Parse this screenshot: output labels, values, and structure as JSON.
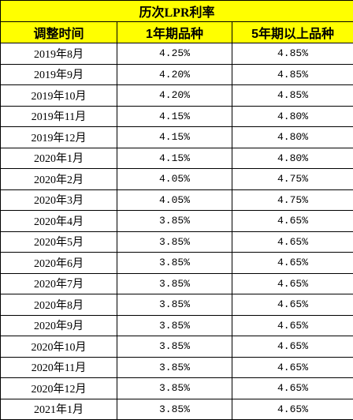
{
  "table": {
    "title": "历次LPR利率",
    "headers": [
      "调整时间",
      "1年期品种",
      "5年期以上品种"
    ],
    "rows": [
      [
        "2019年8月",
        "4.25%",
        "4.85%"
      ],
      [
        "2019年9月",
        "4.20%",
        "4.85%"
      ],
      [
        "2019年10月",
        "4.20%",
        "4.85%"
      ],
      [
        "2019年11月",
        "4.15%",
        "4.80%"
      ],
      [
        "2019年12月",
        "4.15%",
        "4.80%"
      ],
      [
        "2020年1月",
        "4.15%",
        "4.80%"
      ],
      [
        "2020年2月",
        "4.05%",
        "4.75%"
      ],
      [
        "2020年3月",
        "4.05%",
        "4.75%"
      ],
      [
        "2020年4月",
        "3.85%",
        "4.65%"
      ],
      [
        "2020年5月",
        "3.85%",
        "4.65%"
      ],
      [
        "2020年6月",
        "3.85%",
        "4.65%"
      ],
      [
        "2020年7月",
        "3.85%",
        "4.65%"
      ],
      [
        "2020年8月",
        "3.85%",
        "4.65%"
      ],
      [
        "2020年9月",
        "3.85%",
        "4.65%"
      ],
      [
        "2020年10月",
        "3.85%",
        "4.65%"
      ],
      [
        "2020年11月",
        "3.85%",
        "4.65%"
      ],
      [
        "2020年12月",
        "3.85%",
        "4.65%"
      ],
      [
        "2021年1月",
        "3.85%",
        "4.65%"
      ]
    ]
  },
  "colors": {
    "header_fill": "#ffff00",
    "border": "#000000",
    "text": "#000000"
  }
}
